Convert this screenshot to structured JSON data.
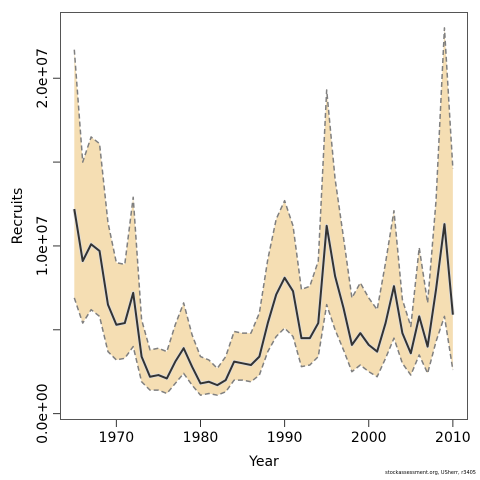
{
  "chart_data": {
    "type": "area",
    "title": "",
    "xlabel": "Year",
    "ylabel": "Recruits",
    "xlim": [
      1963.3,
      2011.8
    ],
    "ylim": [
      -380000,
      23950000
    ],
    "x_ticks": [
      1970,
      1980,
      1990,
      2000,
      2010
    ],
    "x_tick_labels": [
      "1970",
      "1980",
      "1990",
      "2000",
      "2010"
    ],
    "y_ticks": [
      0,
      5000000,
      10000000,
      15000000,
      20000000
    ],
    "y_tick_labels": [
      "0.0e+00",
      "",
      "1.0e+07",
      "",
      "2.0e+07"
    ],
    "grid": false,
    "band_color": "#f5deb3",
    "line_color": "#333333",
    "bound_color": "#7f7f7f",
    "years": [
      1965,
      1966,
      1967,
      1968,
      1969,
      1970,
      1971,
      1972,
      1973,
      1974,
      1975,
      1976,
      1977,
      1978,
      1979,
      1980,
      1981,
      1982,
      1983,
      1984,
      1985,
      1986,
      1987,
      1988,
      1989,
      1990,
      1991,
      1992,
      1993,
      1994,
      1995,
      1996,
      1997,
      1998,
      1999,
      2000,
      2001,
      2002,
      2003,
      2004,
      2005,
      2006,
      2007,
      2008,
      2009,
      2010
    ],
    "series": [
      {
        "name": "",
        "role": "upper",
        "values": [
          21700000,
          15000000,
          16500000,
          16100000,
          11400000,
          9000000,
          8900000,
          12900000,
          5600000,
          3800000,
          3900000,
          3700000,
          5300000,
          6600000,
          4700000,
          3400000,
          3200000,
          2700000,
          3400000,
          4900000,
          4800000,
          4800000,
          6000000,
          9200000,
          11600000,
          12700000,
          11200000,
          7400000,
          7600000,
          9100000,
          19300000,
          14000000,
          10500000,
          6900000,
          7800000,
          6900000,
          6200000,
          9000000,
          12100000,
          6800000,
          5200000,
          9900000,
          6600000,
          12700000,
          23000000,
          14600000
        ]
      },
      {
        "name": "",
        "role": "estimate",
        "values": [
          12200000,
          9100000,
          10100000,
          9700000,
          6500000,
          5300000,
          5400000,
          7200000,
          3400000,
          2200000,
          2300000,
          2100000,
          3100000,
          3900000,
          2800000,
          1800000,
          1900000,
          1700000,
          2000000,
          3100000,
          3000000,
          2900000,
          3400000,
          5400000,
          7100000,
          8100000,
          7300000,
          4500000,
          4500000,
          5400000,
          11200000,
          8200000,
          6300000,
          4100000,
          4800000,
          4100000,
          3700000,
          5400000,
          7600000,
          4800000,
          3600000,
          5800000,
          4000000,
          7400000,
          11300000,
          5900000
        ]
      },
      {
        "name": "",
        "role": "lower",
        "values": [
          6900000,
          5400000,
          6200000,
          5800000,
          3700000,
          3200000,
          3300000,
          4000000,
          1900000,
          1400000,
          1400000,
          1200000,
          1800000,
          2400000,
          1700000,
          1100000,
          1200000,
          1100000,
          1300000,
          2000000,
          2000000,
          1900000,
          2300000,
          3700000,
          4600000,
          5100000,
          4600000,
          2800000,
          2900000,
          3400000,
          6500000,
          5000000,
          3800000,
          2500000,
          2900000,
          2500000,
          2200000,
          3300000,
          4500000,
          3000000,
          2300000,
          3500000,
          2400000,
          4300000,
          5800000,
          2600000
        ]
      }
    ]
  },
  "footnote": "stockassessment.org, USherr, r3405"
}
